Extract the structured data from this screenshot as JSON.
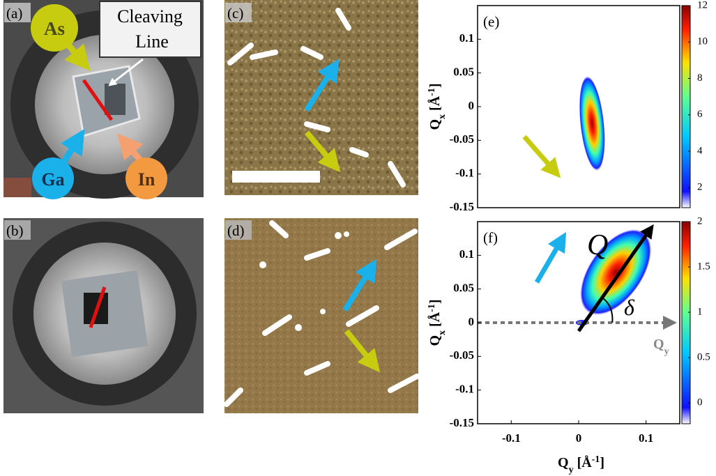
{
  "panels": {
    "a": {
      "label": "(a)",
      "as": "As",
      "ga": "Ga",
      "in": "In",
      "cleaving_1": "Cleaving",
      "cleaving_2": "Line"
    },
    "b": {
      "label": "(b)"
    },
    "c": {
      "label": "(c)"
    },
    "d": {
      "label": "(d)"
    }
  },
  "chart_data": [
    {
      "type": "heatmap",
      "label": "(e)",
      "xlim": [
        -0.15,
        0.15
      ],
      "ylim": [
        -0.15,
        0.15
      ],
      "yticks": [
        -0.15,
        -0.1,
        -0.05,
        0,
        0.05,
        0.1
      ],
      "ylabel": {
        "main": "Q",
        "sub": "x",
        "unit": " [Å",
        "sup": "-1",
        "close": "]"
      },
      "clim": [
        0.9,
        12
      ],
      "cticks": [
        2,
        4,
        6,
        8,
        10,
        12
      ]
    },
    {
      "type": "heatmap",
      "label": "(f)",
      "xlim": [
        -0.15,
        0.15
      ],
      "ylim": [
        -0.15,
        0.15
      ],
      "xticks": [
        -0.1,
        0,
        0.1
      ],
      "yticks": [
        -0.15,
        -0.1,
        -0.05,
        0,
        0.05,
        0.1
      ],
      "ylabel": {
        "main": "Q",
        "sub": "x",
        "unit": " [Å",
        "sup": "-1",
        "close": "]"
      },
      "xlabel": {
        "main": "Q",
        "sub": "y",
        "unit": " [Å",
        "sup": "-1",
        "close": "]"
      },
      "clim": [
        -0.23,
        2
      ],
      "cticks": [
        0,
        0.5,
        1,
        1.5,
        2
      ],
      "annotations": {
        "q": "Q",
        "delta": "δ",
        "qy": "Q",
        "qy_sub": "y"
      }
    }
  ]
}
